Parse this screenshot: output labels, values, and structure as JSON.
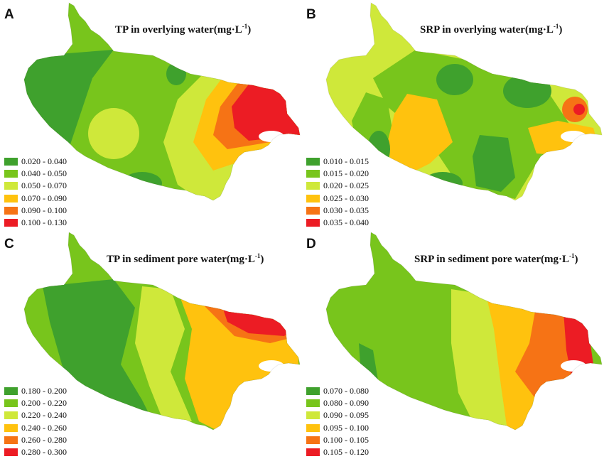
{
  "colors": {
    "dark_green": "#3fa12d",
    "green": "#78c51c",
    "yellow_green": "#cfe83a",
    "yellow": "#ffc20e",
    "orange": "#f67315",
    "red": "#ec1c24"
  },
  "panels": [
    {
      "letter": "A",
      "title": "TP in overlying water(mg·L",
      "unit_exp": "-1",
      "unit_tail": ")",
      "legend": [
        {
          "range": "0.020 - 0.040",
          "color": "#3fa12d"
        },
        {
          "range": "0.040 - 0.050",
          "color": "#78c51c"
        },
        {
          "range": "0.050 - 0.070",
          "color": "#cfe83a"
        },
        {
          "range": "0.070 - 0.090",
          "color": "#ffc20e"
        },
        {
          "range": "0.090 - 0.100",
          "color": "#f67315"
        },
        {
          "range": "0.100 - 0.130",
          "color": "#ec1c24"
        }
      ]
    },
    {
      "letter": "B",
      "title": "SRP  in overlying water(mg·L",
      "unit_exp": "-1",
      "unit_tail": ")",
      "legend": [
        {
          "range": "0.010 - 0.015",
          "color": "#3fa12d"
        },
        {
          "range": "0.015 - 0.020",
          "color": "#78c51c"
        },
        {
          "range": "0.020 - 0.025",
          "color": "#cfe83a"
        },
        {
          "range": "0.025 - 0.030",
          "color": "#ffc20e"
        },
        {
          "range": "0.030 - 0.035",
          "color": "#f67315"
        },
        {
          "range": "0.035 - 0.040",
          "color": "#ec1c24"
        }
      ]
    },
    {
      "letter": "C",
      "title": "TP in sediment pore water(mg·L",
      "unit_exp": "-1",
      "unit_tail": ")",
      "legend": [
        {
          "range": "0.180 - 0.200",
          "color": "#3fa12d"
        },
        {
          "range": "0.200 - 0.220",
          "color": "#78c51c"
        },
        {
          "range": "0.220 - 0.240",
          "color": "#cfe83a"
        },
        {
          "range": "0.240 - 0.260",
          "color": "#ffc20e"
        },
        {
          "range": "0.260 - 0.280",
          "color": "#f67315"
        },
        {
          "range": "0.280 - 0.300",
          "color": "#ec1c24"
        }
      ]
    },
    {
      "letter": "D",
      "title": "SRP in sediment pore water(mg·L",
      "unit_exp": "-1",
      "unit_tail": ")",
      "legend": [
        {
          "range": "0.070 - 0.080",
          "color": "#3fa12d"
        },
        {
          "range": "0.080 - 0.090",
          "color": "#78c51c"
        },
        {
          "range": "0.090 - 0.095",
          "color": "#cfe83a"
        },
        {
          "range": "0.095 - 0.100",
          "color": "#ffc20e"
        },
        {
          "range": "0.100 - 0.105",
          "color": "#f67315"
        },
        {
          "range": "0.105 - 0.120",
          "color": "#ec1c24"
        }
      ]
    }
  ]
}
